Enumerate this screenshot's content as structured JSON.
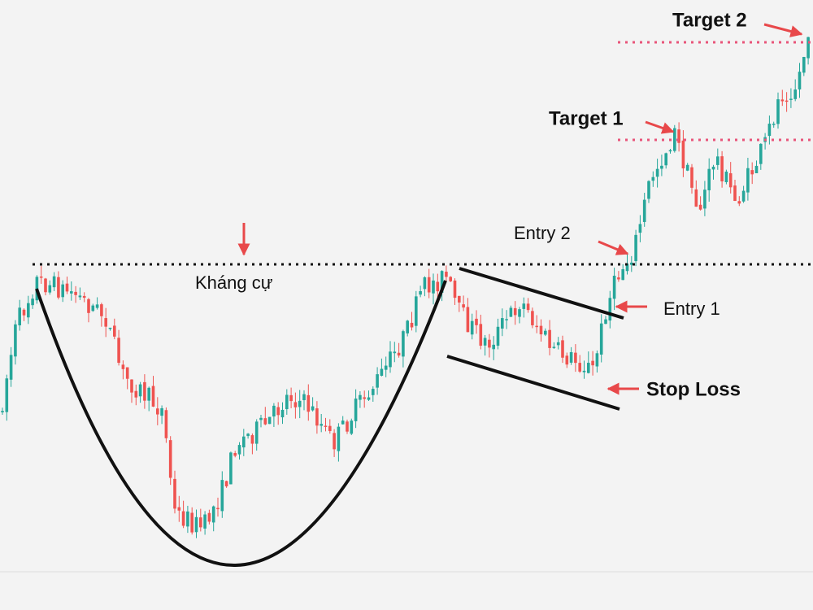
{
  "annotations": {
    "resistance": "Kháng cự",
    "target2": "Target 2",
    "target1": "Target 1",
    "entry2": "Entry 2",
    "entry1": "Entry 1",
    "stop_loss": "Stop Loss"
  }
}
